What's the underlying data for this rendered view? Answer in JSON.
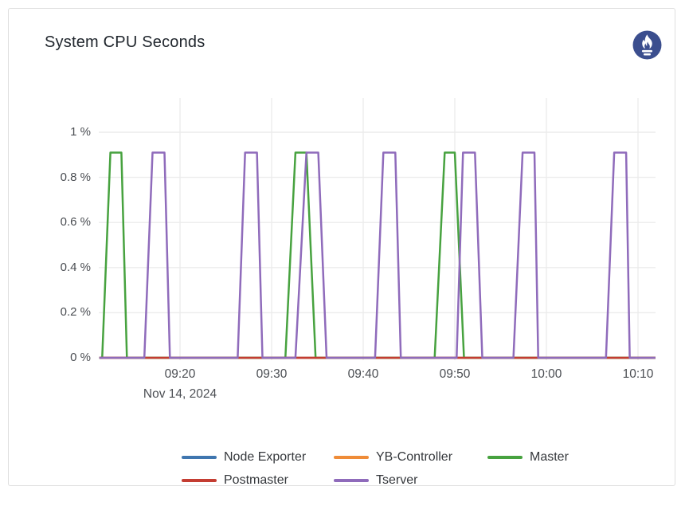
{
  "panel": {
    "title": "System CPU Seconds"
  },
  "icons": {
    "prometheus_logo": {
      "name": "prometheus-logo",
      "circle_color": "#3b4e8e",
      "flame_color": "#ffffff"
    }
  },
  "colors": {
    "panel_border": "#dedede",
    "grid": "#ececec",
    "axis_text": "#4b4e53",
    "title_text": "#20262d"
  },
  "chart_data": {
    "type": "line",
    "title": "System CPU Seconds",
    "grid": true,
    "legend_position": "bottom",
    "line_width": 2.5,
    "peak_percent": 0.91,
    "x_axis": {
      "unit": "minutes after 09:00, Nov 14 2024",
      "date_label": "Nov 14, 2024",
      "range_minutes": [
        11.2,
        71.9
      ],
      "ticks": [
        {
          "minutes": 20,
          "label": "09:20"
        },
        {
          "minutes": 30,
          "label": "09:30"
        },
        {
          "minutes": 40,
          "label": "09:40"
        },
        {
          "minutes": 50,
          "label": "09:50"
        },
        {
          "minutes": 60,
          "label": "10:00"
        },
        {
          "minutes": 70,
          "label": "10:10"
        }
      ]
    },
    "y_axis": {
      "unit": "%",
      "range": [
        0,
        1.15
      ],
      "ticks": [
        {
          "value": 0,
          "label": "0 %"
        },
        {
          "value": 0.2,
          "label": "0.2 %"
        },
        {
          "value": 0.4,
          "label": "0.4 %"
        },
        {
          "value": 0.6,
          "label": "0.6 %"
        },
        {
          "value": 0.8,
          "label": "0.8 %"
        },
        {
          "value": 1,
          "label": "1 %"
        }
      ]
    },
    "series": [
      {
        "name": "Node Exporter",
        "slug": "node-exporter",
        "color": "#3f76af",
        "points": [
          [
            11.2,
            0
          ],
          [
            71.9,
            0
          ]
        ]
      },
      {
        "name": "YB-Controller",
        "slug": "yb-controller",
        "color": "#ef8c38",
        "points": [
          [
            11.2,
            0
          ],
          [
            71.9,
            0
          ]
        ]
      },
      {
        "name": "Master",
        "slug": "master",
        "color": "#47a23f",
        "points": [
          [
            11.2,
            0
          ],
          [
            11.5,
            0
          ],
          [
            12.4,
            0.91
          ],
          [
            13.6,
            0.91
          ],
          [
            14.2,
            0
          ],
          [
            31.5,
            0
          ],
          [
            32.6,
            0.91
          ],
          [
            33.8,
            0.91
          ],
          [
            34.8,
            0
          ],
          [
            47.8,
            0
          ],
          [
            48.9,
            0.91
          ],
          [
            50.0,
            0.91
          ],
          [
            51.0,
            0
          ],
          [
            71.9,
            0
          ]
        ]
      },
      {
        "name": "Postmaster",
        "slug": "postmaster",
        "color": "#c43d32",
        "points": [
          [
            11.2,
            0
          ],
          [
            71.9,
            0
          ]
        ]
      },
      {
        "name": "Tserver",
        "slug": "tserver",
        "color": "#8f6bbb",
        "points": [
          [
            11.2,
            0
          ],
          [
            16.1,
            0
          ],
          [
            17.0,
            0.91
          ],
          [
            18.3,
            0.91
          ],
          [
            18.9,
            0
          ],
          [
            26.3,
            0
          ],
          [
            27.1,
            0.91
          ],
          [
            28.4,
            0.91
          ],
          [
            29.0,
            0
          ],
          [
            32.6,
            0
          ],
          [
            33.8,
            0.91
          ],
          [
            35.1,
            0.91
          ],
          [
            36.0,
            0
          ],
          [
            41.3,
            0
          ],
          [
            42.2,
            0.91
          ],
          [
            43.5,
            0.91
          ],
          [
            44.1,
            0
          ],
          [
            50.2,
            0
          ],
          [
            50.9,
            0.91
          ],
          [
            52.2,
            0.91
          ],
          [
            53.0,
            0
          ],
          [
            56.4,
            0
          ],
          [
            57.4,
            0.91
          ],
          [
            58.7,
            0.91
          ],
          [
            59.1,
            0
          ],
          [
            66.5,
            0
          ],
          [
            67.4,
            0.91
          ],
          [
            68.7,
            0.91
          ],
          [
            69.1,
            0
          ],
          [
            71.9,
            0
          ]
        ]
      }
    ]
  }
}
